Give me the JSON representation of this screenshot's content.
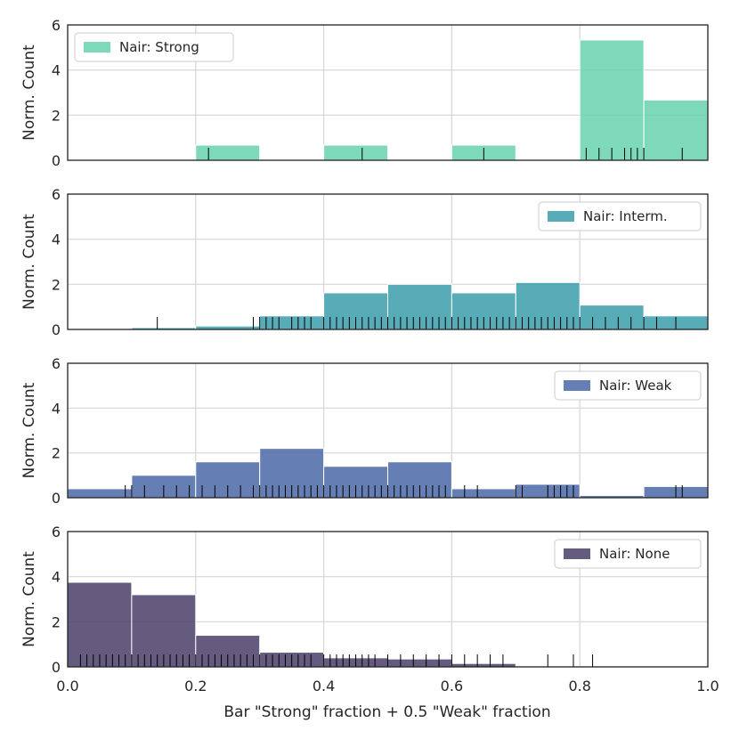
{
  "chart_data": {
    "type": "histogram",
    "xlabel": "Bar \"Strong\" fraction + 0.5 \"Weak\" fraction",
    "ylabel": "Norm. Count",
    "xlim": [
      0.0,
      1.0
    ],
    "ylim": [
      0,
      6
    ],
    "x_ticks": [
      "0.0",
      "0.2",
      "0.4",
      "0.6",
      "0.8",
      "1.0"
    ],
    "y_ticks": [
      "0",
      "2",
      "4",
      "6"
    ],
    "bin_edges": [
      0.0,
      0.1,
      0.2,
      0.3,
      0.4,
      0.5,
      0.6,
      0.7,
      0.8,
      0.9,
      1.0
    ],
    "grid": true,
    "panels": [
      {
        "name": "Nair: Strong",
        "color": "#66d2ae",
        "legend_position": "top-left",
        "values": [
          0,
          0,
          0.67,
          0,
          0.67,
          0,
          0.67,
          0,
          5.33,
          2.67
        ],
        "rug": [
          0.22,
          0.46,
          0.65,
          0.81,
          0.83,
          0.85,
          0.87,
          0.88,
          0.89,
          0.9,
          0.96
        ]
      },
      {
        "name": "Nair: Interm.",
        "color": "#3a9dac",
        "legend_position": "top-right",
        "values": [
          0,
          0.08,
          0.15,
          0.6,
          1.62,
          2.0,
          1.62,
          2.08,
          1.08,
          0.6
        ],
        "rug": [
          0.14,
          0.29,
          0.3,
          0.31,
          0.32,
          0.33,
          0.35,
          0.36,
          0.37,
          0.38,
          0.4,
          0.41,
          0.42,
          0.43,
          0.44,
          0.45,
          0.46,
          0.47,
          0.48,
          0.49,
          0.5,
          0.51,
          0.52,
          0.53,
          0.54,
          0.55,
          0.56,
          0.57,
          0.58,
          0.59,
          0.6,
          0.61,
          0.62,
          0.63,
          0.64,
          0.65,
          0.66,
          0.67,
          0.68,
          0.69,
          0.7,
          0.71,
          0.72,
          0.73,
          0.74,
          0.75,
          0.76,
          0.77,
          0.78,
          0.79,
          0.8,
          0.82,
          0.84,
          0.86,
          0.88,
          0.9,
          0.92,
          0.95
        ]
      },
      {
        "name": "Nair: Weak",
        "color": "#4a67a6",
        "legend_position": "top-right",
        "values": [
          0.4,
          1.0,
          1.6,
          2.2,
          1.4,
          1.6,
          0.4,
          0.6,
          0.1,
          0.5
        ],
        "rug": [
          0.09,
          0.1,
          0.12,
          0.15,
          0.17,
          0.19,
          0.21,
          0.23,
          0.25,
          0.27,
          0.29,
          0.3,
          0.31,
          0.32,
          0.33,
          0.34,
          0.35,
          0.36,
          0.37,
          0.38,
          0.39,
          0.4,
          0.41,
          0.42,
          0.43,
          0.44,
          0.45,
          0.46,
          0.47,
          0.48,
          0.49,
          0.5,
          0.51,
          0.52,
          0.53,
          0.54,
          0.55,
          0.56,
          0.57,
          0.58,
          0.59,
          0.62,
          0.64,
          0.7,
          0.71,
          0.75,
          0.76,
          0.77,
          0.78,
          0.79,
          0.95,
          0.96
        ]
      },
      {
        "name": "Nair: None",
        "color": "#4a3e69",
        "legend_position": "top-right",
        "values": [
          3.75,
          3.2,
          1.4,
          0.65,
          0.4,
          0.35,
          0.15,
          0,
          0,
          0
        ],
        "rug": [
          0.02,
          0.03,
          0.04,
          0.05,
          0.06,
          0.07,
          0.08,
          0.09,
          0.1,
          0.11,
          0.12,
          0.13,
          0.14,
          0.15,
          0.16,
          0.17,
          0.18,
          0.19,
          0.2,
          0.21,
          0.22,
          0.23,
          0.24,
          0.25,
          0.26,
          0.27,
          0.28,
          0.29,
          0.3,
          0.31,
          0.32,
          0.33,
          0.34,
          0.35,
          0.36,
          0.37,
          0.38,
          0.4,
          0.41,
          0.42,
          0.43,
          0.44,
          0.45,
          0.46,
          0.47,
          0.48,
          0.5,
          0.52,
          0.54,
          0.56,
          0.58,
          0.6,
          0.62,
          0.64,
          0.66,
          0.68,
          0.75,
          0.79,
          0.82
        ]
      }
    ]
  }
}
